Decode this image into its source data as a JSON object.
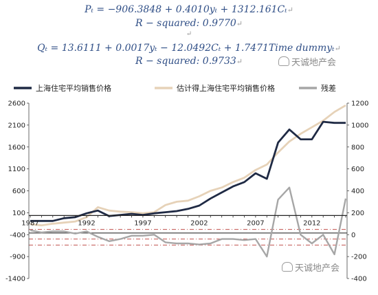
{
  "equations": {
    "p_equation": "Pₜ = −906.3848 + 0.4010yₜ + 1312.161Cₜ",
    "p_rsquared": "R − squared: 0.9770",
    "separator": "↵",
    "q_equation": "Qₜ = 13.6111 + 0.0017yₜ − 12.0492Cₜ + 1.7471Time dummyₜ",
    "q_rsquared": "R − squared: 0.9733",
    "line_mark": "↵"
  },
  "watermark": "天诚地产会",
  "colors": {
    "actual": "#1f2a44",
    "fitted": "#e6d2b8",
    "residual": "#a6a6a6",
    "refline_red": "#c0504d",
    "refline_dark": "#555555"
  },
  "chart_data": {
    "type": "line",
    "legend": [
      "上海住宅平均销售价格",
      "估计得上海住宅平均销售价格",
      "残差"
    ],
    "legend_position": "top",
    "x_ticks": [
      "1987",
      "1992",
      "1997",
      "2002",
      "2007",
      "2012"
    ],
    "left_axis": {
      "ticks": [
        "2600",
        "2100",
        "1600",
        "1100",
        "600",
        "100",
        "-400",
        "-900",
        "-1400"
      ],
      "ylim": [
        -1400,
        2600
      ]
    },
    "right_axis": {
      "ticks": [
        "1200",
        "1000",
        "800",
        "600",
        "400",
        "200",
        "0",
        "-200",
        "-400"
      ],
      "ylim": [
        -400,
        1200
      ]
    },
    "x": [
      1987,
      1988,
      1989,
      1990,
      1991,
      1992,
      1993,
      1994,
      1995,
      1996,
      1997,
      1998,
      1999,
      2000,
      2001,
      2002,
      2003,
      2004,
      2005,
      2006,
      2007,
      2008,
      2009,
      2010,
      2011,
      2012,
      2013,
      2014,
      2015
    ],
    "series": [
      {
        "name": "上海住宅平均销售价格",
        "axis": "right",
        "color": "actual",
        "values": [
          125,
          125,
          125,
          150,
          160,
          195,
          220,
          170,
          180,
          190,
          180,
          195,
          205,
          215,
          235,
          265,
          330,
          385,
          440,
          480,
          560,
          510,
          840,
          960,
          870,
          870,
          1030,
          1020,
          1020
        ]
      },
      {
        "name": "估计得上海住宅平均销售价格",
        "axis": "right",
        "color": "fitted",
        "values": [
          95,
          85,
          100,
          110,
          120,
          160,
          250,
          220,
          210,
          205,
          195,
          205,
          270,
          300,
          310,
          350,
          400,
          430,
          480,
          520,
          590,
          640,
          750,
          850,
          920,
          980,
          1040,
          1120,
          1180
        ]
      },
      {
        "name": "残差",
        "axis": "right",
        "color": "residual",
        "values": [
          40,
          20,
          30,
          30,
          10,
          30,
          -20,
          -60,
          -40,
          -10,
          -10,
          0,
          -70,
          -80,
          -80,
          -90,
          -80,
          -40,
          -40,
          -50,
          -40,
          -200,
          320,
          430,
          0,
          -80,
          0,
          -180,
          330
        ]
      }
    ],
    "reference_lines": [
      {
        "axis": "right",
        "value": 48,
        "color": "refline_red",
        "style": "dashed"
      },
      {
        "axis": "right",
        "value": 15,
        "color": "refline_dark",
        "style": "solid"
      },
      {
        "axis": "right",
        "value": -40,
        "color": "refline_red",
        "style": "dashed"
      },
      {
        "axis": "right",
        "value": -95,
        "color": "refline_red",
        "style": "dashed"
      }
    ]
  }
}
